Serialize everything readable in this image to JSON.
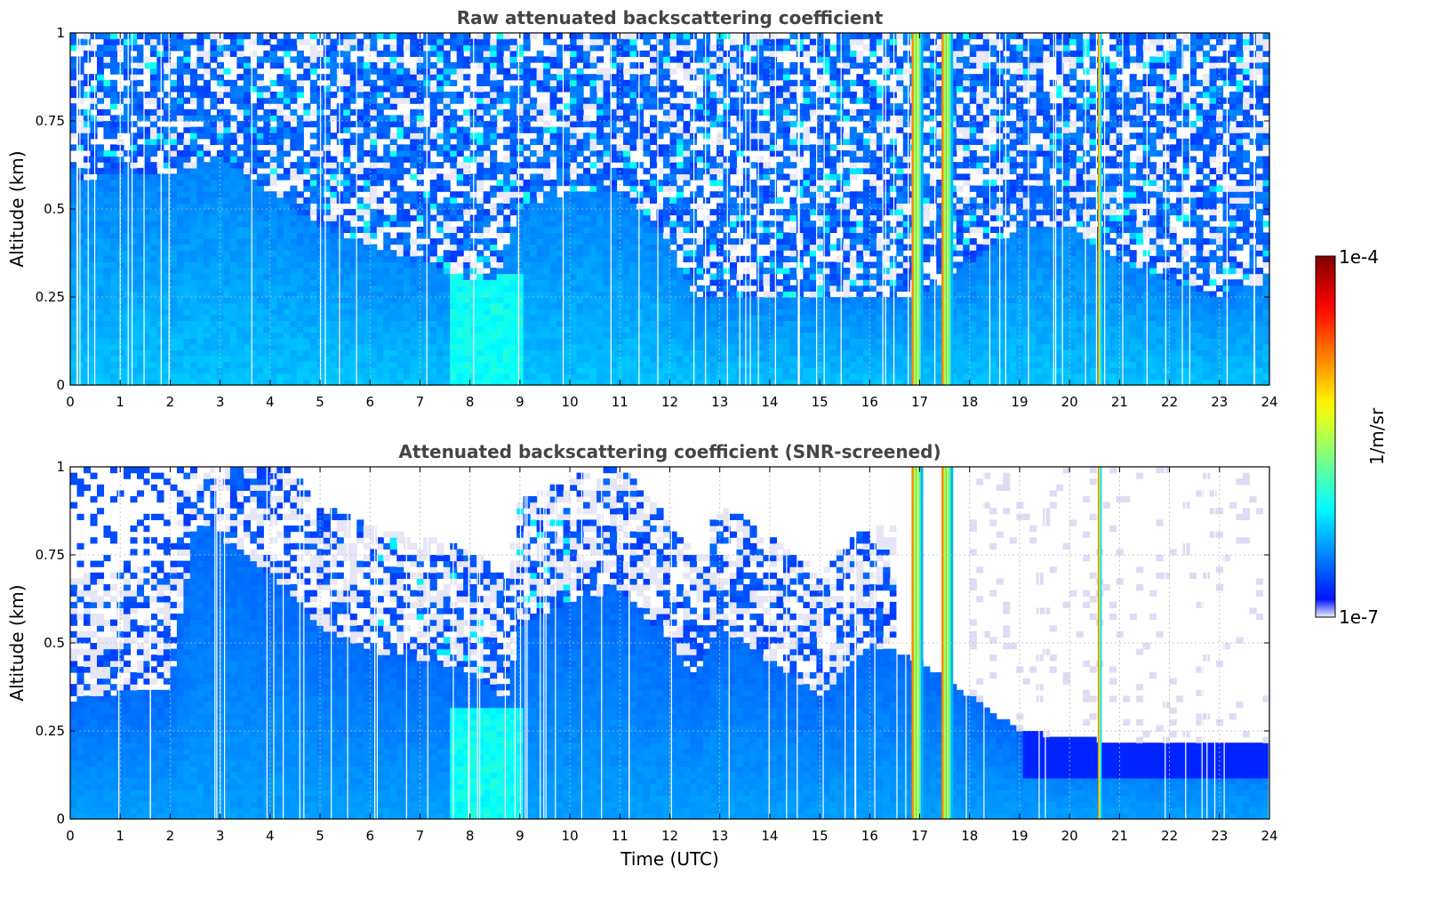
{
  "chart_data": [
    {
      "type": "heatmap",
      "title": "Raw attenuated backscattering coefficient",
      "xlabel": "",
      "ylabel": "Altitude (km)",
      "xlim": [
        0,
        24
      ],
      "ylim": [
        0,
        1
      ],
      "xticks": [
        "0",
        "1",
        "2",
        "3",
        "4",
        "5",
        "6",
        "7",
        "8",
        "9",
        "10",
        "11",
        "12",
        "13",
        "14",
        "15",
        "16",
        "17",
        "18",
        "19",
        "20",
        "21",
        "22",
        "23",
        "24"
      ],
      "yticks": [
        "0",
        "0.25",
        "0.5",
        "0.75",
        "1"
      ],
      "ytick_values": [
        0,
        0.25,
        0.5,
        0.75,
        1
      ],
      "grid": true,
      "colormap": "jet",
      "noise_top_km": [
        [
          0,
          0.58
        ],
        [
          1,
          0.6
        ],
        [
          2,
          0.6
        ],
        [
          3,
          0.65
        ],
        [
          4,
          0.55
        ],
        [
          5,
          0.45
        ],
        [
          6,
          0.4
        ],
        [
          7,
          0.35
        ],
        [
          8,
          0.3
        ],
        [
          8.5,
          0.3
        ],
        [
          9,
          0.5
        ],
        [
          10,
          0.55
        ],
        [
          11,
          0.55
        ],
        [
          12,
          0.4
        ],
        [
          12.5,
          0.25
        ],
        [
          13,
          0.25
        ],
        [
          15,
          0.25
        ],
        [
          17,
          0.25
        ],
        [
          19,
          0.45
        ],
        [
          20,
          0.45
        ],
        [
          21,
          0.35
        ],
        [
          22,
          0.3
        ],
        [
          23,
          0.25
        ],
        [
          24,
          0.3
        ]
      ],
      "cloud_columns_utc": [
        16.9,
        17.0,
        17.5,
        17.6,
        20.6
      ],
      "bright_region_utc": [
        7.6,
        9.0
      ]
    },
    {
      "type": "heatmap",
      "title": "Attenuated backscattering coefficient (SNR-screened)",
      "xlabel": "Time (UTC)",
      "ylabel": "Altitude (km)",
      "xlim": [
        0,
        24
      ],
      "ylim": [
        0,
        1
      ],
      "xticks": [
        "0",
        "1",
        "2",
        "3",
        "4",
        "5",
        "6",
        "7",
        "8",
        "9",
        "10",
        "11",
        "12",
        "13",
        "14",
        "15",
        "16",
        "17",
        "18",
        "19",
        "20",
        "21",
        "22",
        "23",
        "24"
      ],
      "yticks": [
        "0",
        "0.25",
        "0.5",
        "0.75",
        "1"
      ],
      "ytick_values": [
        0,
        0.25,
        0.5,
        0.75,
        1
      ],
      "grid": true,
      "colormap": "jet",
      "layer_top_km": [
        [
          0,
          0.34
        ],
        [
          1,
          0.36
        ],
        [
          2,
          0.37
        ],
        [
          2.5,
          0.85
        ],
        [
          3,
          0.8
        ],
        [
          4,
          0.7
        ],
        [
          5,
          0.55
        ],
        [
          6,
          0.48
        ],
        [
          7,
          0.45
        ],
        [
          8,
          0.42
        ],
        [
          8.7,
          0.33
        ],
        [
          9,
          0.55
        ],
        [
          10,
          0.62
        ],
        [
          11,
          0.65
        ],
        [
          12,
          0.5
        ],
        [
          12.5,
          0.4
        ],
        [
          13,
          0.55
        ],
        [
          14,
          0.45
        ],
        [
          15,
          0.35
        ],
        [
          16,
          0.5
        ],
        [
          17,
          0.45
        ],
        [
          18,
          0.35
        ],
        [
          19,
          0.25
        ],
        [
          20,
          0.23
        ],
        [
          21,
          0.22
        ],
        [
          22,
          0.22
        ],
        [
          23,
          0.22
        ],
        [
          24,
          0.22
        ]
      ],
      "cloud_columns_utc": [
        16.9,
        17.0,
        17.5,
        17.6,
        20.6
      ],
      "bright_region_utc": [
        7.6,
        9.0
      ]
    }
  ],
  "colorbar": {
    "label": "1/m/sr",
    "max_label": "1e-4",
    "min_label": "1e-7"
  }
}
